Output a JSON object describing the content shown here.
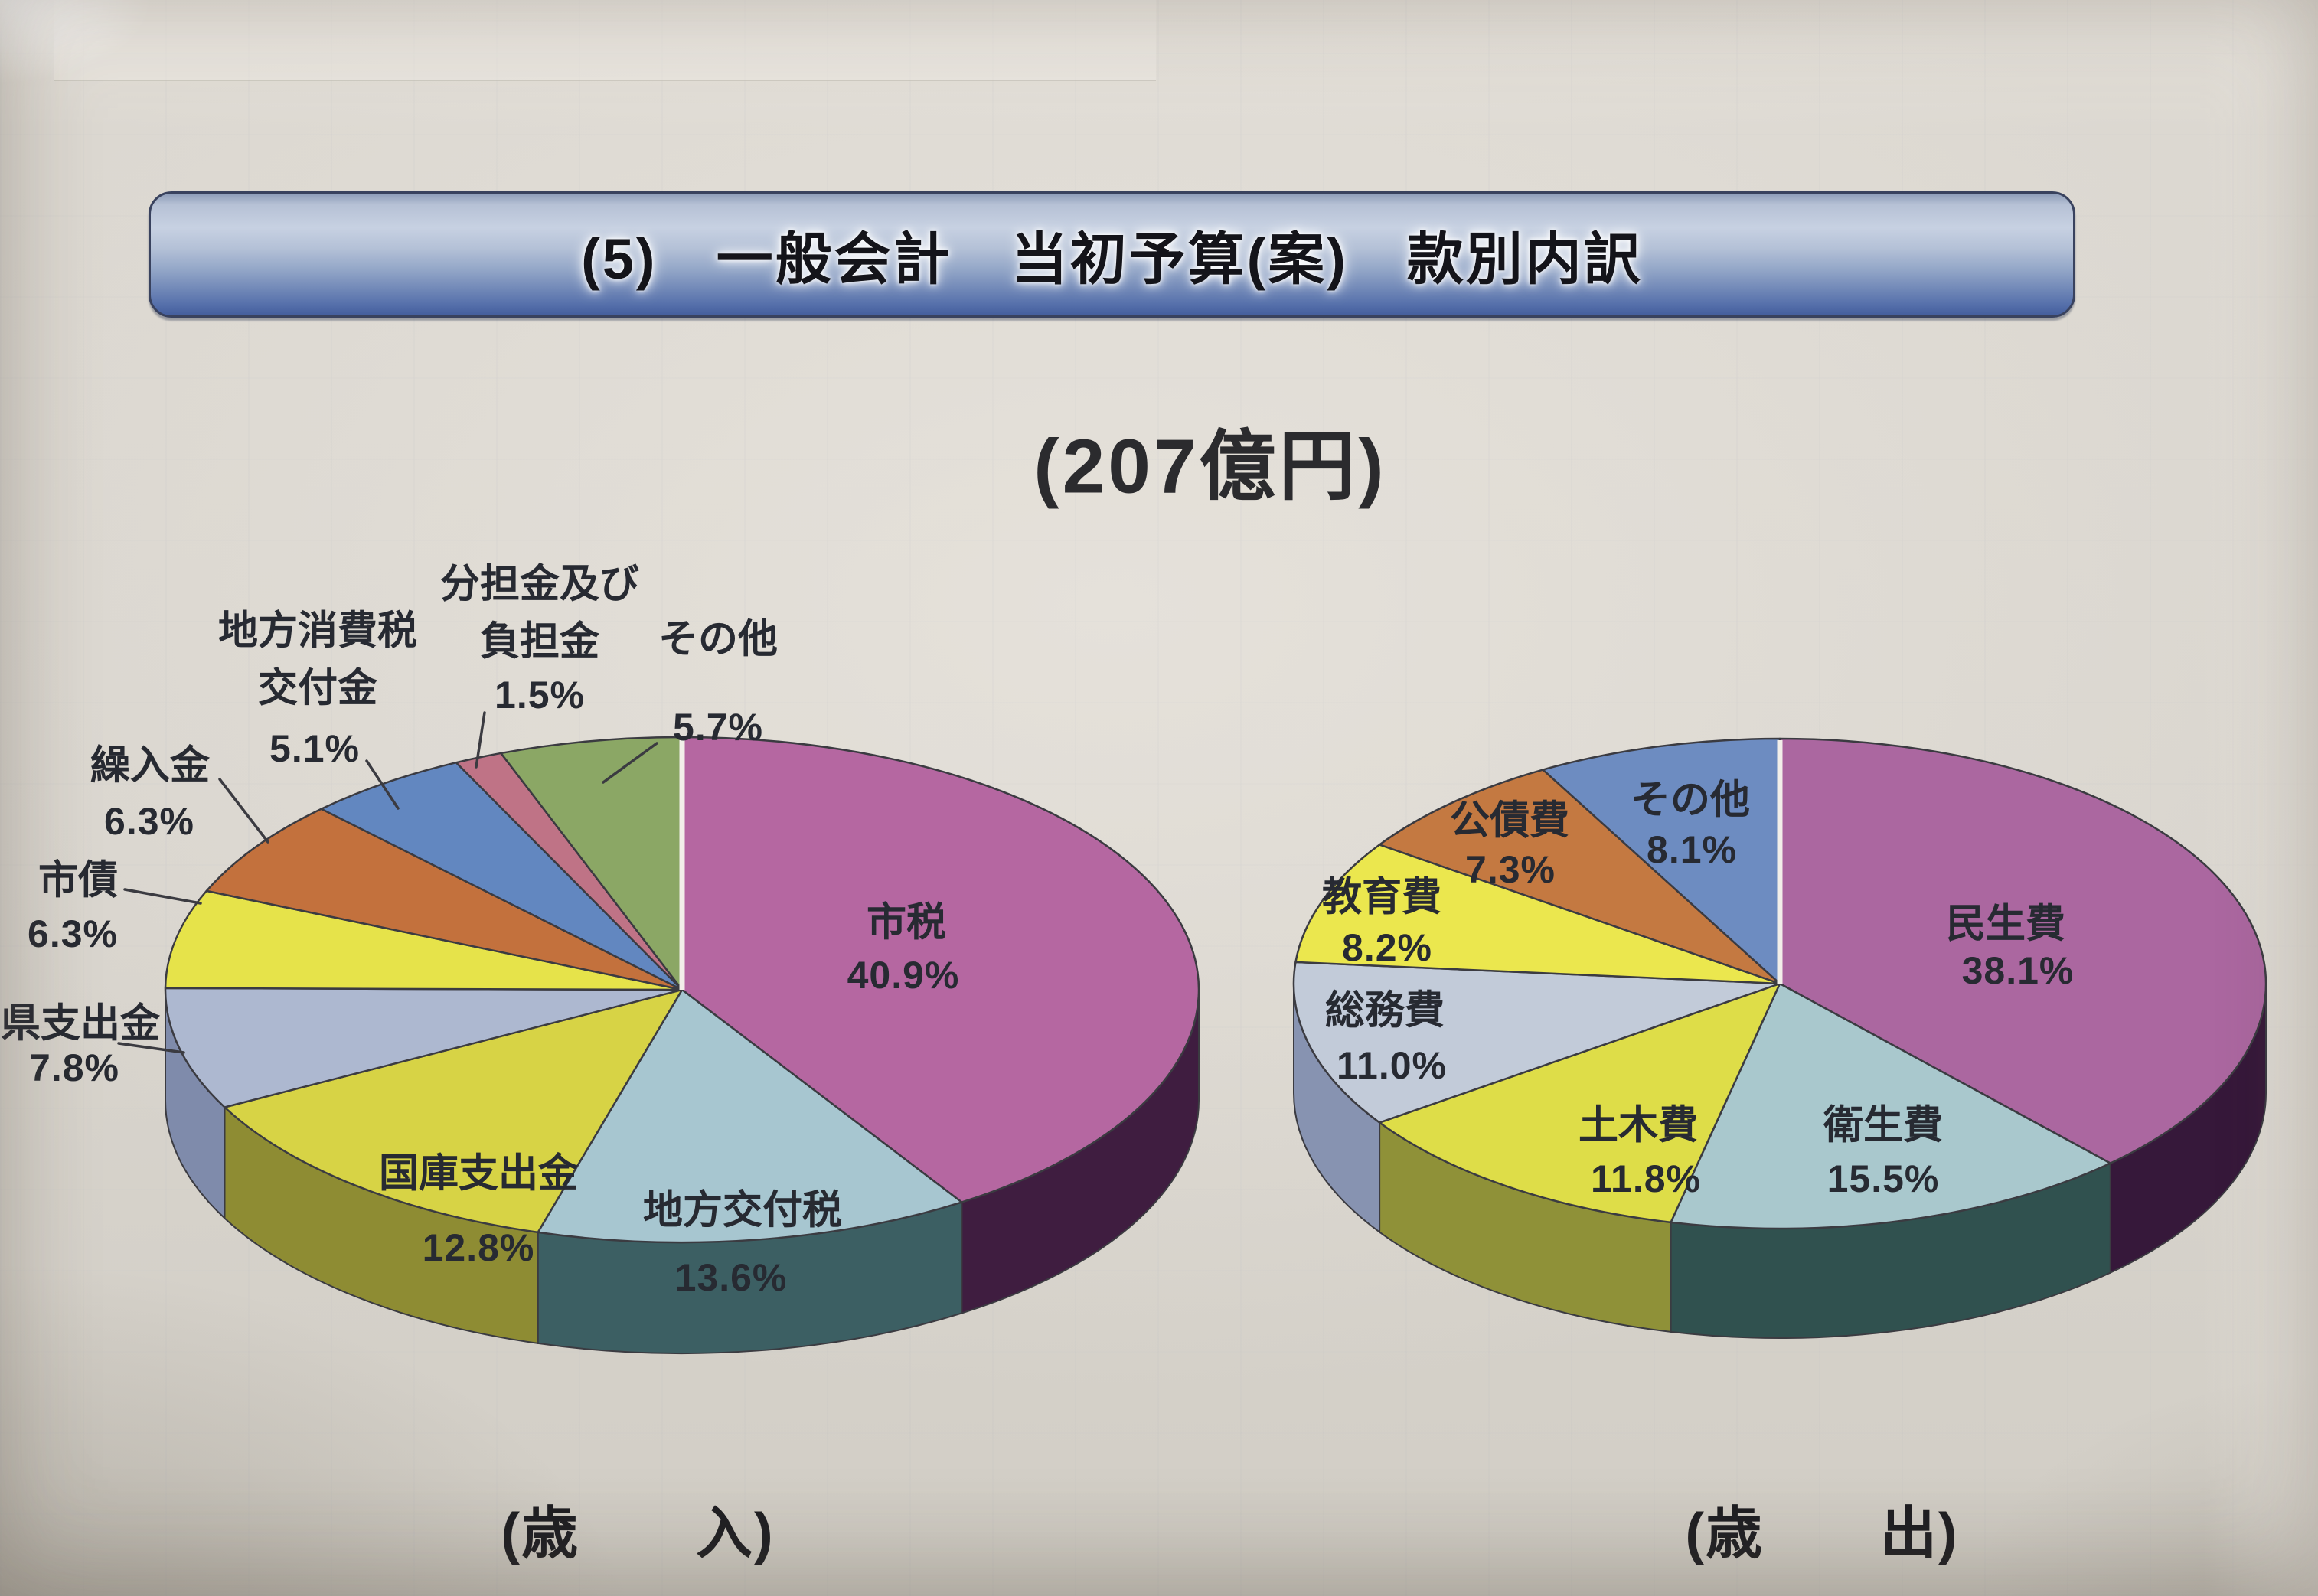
{
  "page": {
    "banner_title": "(5)　一般会計　当初予算(案)　款別内訳",
    "subtitle": "(207億円)"
  },
  "chart_data": [
    {
      "type": "pie",
      "name": "general-account-revenue",
      "caption": "(歳　　入)",
      "total_label": "(207億円)",
      "start_angle_deg": 0,
      "direction": "clockwise",
      "style_3d": true,
      "slices": [
        {
          "label": "市税",
          "pct": "40.9%",
          "value": 40.9,
          "color": "#b567a1",
          "side": "#3f1d40"
        },
        {
          "label": "地方交付税",
          "pct": "13.6%",
          "value": 13.6,
          "color": "#a7c6d0",
          "side": "#3c5f63"
        },
        {
          "label": "国庫支出金",
          "pct": "12.8%",
          "value": 12.8,
          "color": "#d7d345",
          "side": "#8e8c33"
        },
        {
          "label": "県支出金",
          "pct": "7.8%",
          "value": 7.8,
          "color": "#adb8d0",
          "side": "#7f8bab"
        },
        {
          "label": "市債",
          "pct": "6.3%",
          "value": 6.3,
          "color": "#e6e34a",
          "side": "#97942f"
        },
        {
          "label": "繰入金",
          "pct": "6.3%",
          "value": 6.3,
          "color": "#c3713d",
          "side": "#7d431f"
        },
        {
          "label": "地方消費税\n交付金",
          "pct": "5.1%",
          "value": 5.1,
          "color": "#6287c0",
          "side": "#3d5a8a"
        },
        {
          "label": "分担金及び\n負担金",
          "pct": "1.5%",
          "value": 1.5,
          "color": "#bf7386",
          "side": "#8a4a5c"
        },
        {
          "label": "その他",
          "pct": "5.7%",
          "value": 5.7,
          "color": "#8ba765",
          "side": "#5c7340"
        }
      ]
    },
    {
      "type": "pie",
      "name": "general-account-expenditure",
      "caption": "(歳　　出)",
      "start_angle_deg": 0,
      "direction": "clockwise",
      "style_3d": true,
      "slices": [
        {
          "label": "民生費",
          "pct": "38.1%",
          "value": 38.1,
          "color": "#ab67a0",
          "side": "#36183a"
        },
        {
          "label": "衛生費",
          "pct": "15.5%",
          "value": 15.5,
          "color": "#a9c8cd",
          "side": "#30514f"
        },
        {
          "label": "土木費",
          "pct": "11.8%",
          "value": 11.8,
          "color": "#dedd48",
          "side": "#8f9138"
        },
        {
          "label": "総務費",
          "pct": "11.0%",
          "value": 11.0,
          "color": "#c2cbd9",
          "side": "#8793b1"
        },
        {
          "label": "教育費",
          "pct": "8.2%",
          "value": 8.2,
          "color": "#ebe74e",
          "side": "#9a9735"
        },
        {
          "label": "公債費",
          "pct": "7.3%",
          "value": 7.3,
          "color": "#c47941",
          "side": "#7d431f"
        },
        {
          "label": "その他",
          "pct": "8.1%",
          "value": 8.1,
          "color": "#6d8cc1",
          "side": "#40598c"
        }
      ]
    }
  ]
}
